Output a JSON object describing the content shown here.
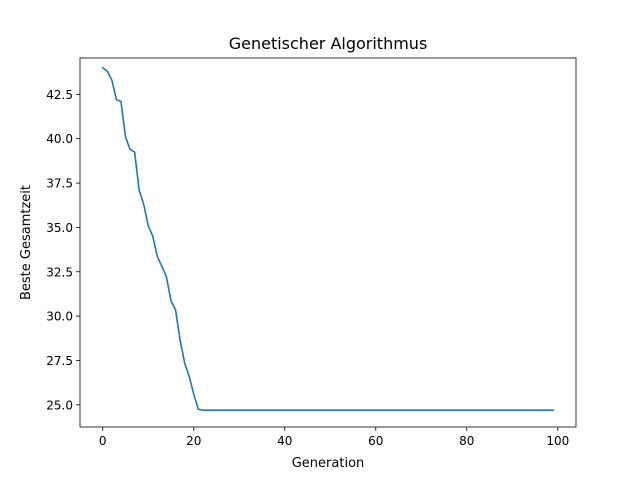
{
  "chart_data": {
    "type": "line",
    "title": "Genetischer Algorithmus",
    "xlabel": "Generation",
    "ylabel": "Beste Gesamtzeit",
    "xlim": [
      -5,
      104
    ],
    "ylim": [
      23.75,
      44.55
    ],
    "x_ticks": [
      0,
      20,
      40,
      60,
      80,
      100
    ],
    "x_tick_labels": [
      "0",
      "20",
      "40",
      "60",
      "80",
      "100"
    ],
    "y_ticks": [
      25.0,
      27.5,
      30.0,
      32.5,
      35.0,
      37.5,
      40.0,
      42.5
    ],
    "y_tick_labels": [
      "25.0",
      "27.5",
      "30.0",
      "32.5",
      "35.0",
      "37.5",
      "40.0",
      "42.5"
    ],
    "grid": false,
    "series": [
      {
        "color": "#1f77b4",
        "x": [
          0,
          1,
          2,
          3,
          4,
          5,
          6,
          7,
          8,
          9,
          10,
          11,
          12,
          13,
          14,
          15,
          16,
          17,
          18,
          19,
          20,
          21,
          22,
          99
        ],
        "y": [
          44.0,
          43.8,
          43.3,
          42.2,
          42.1,
          40.1,
          39.4,
          39.25,
          37.1,
          36.3,
          35.1,
          34.5,
          33.35,
          32.8,
          32.2,
          30.85,
          30.35,
          28.65,
          27.35,
          26.6,
          25.6,
          24.75,
          24.7,
          24.7
        ]
      }
    ]
  }
}
